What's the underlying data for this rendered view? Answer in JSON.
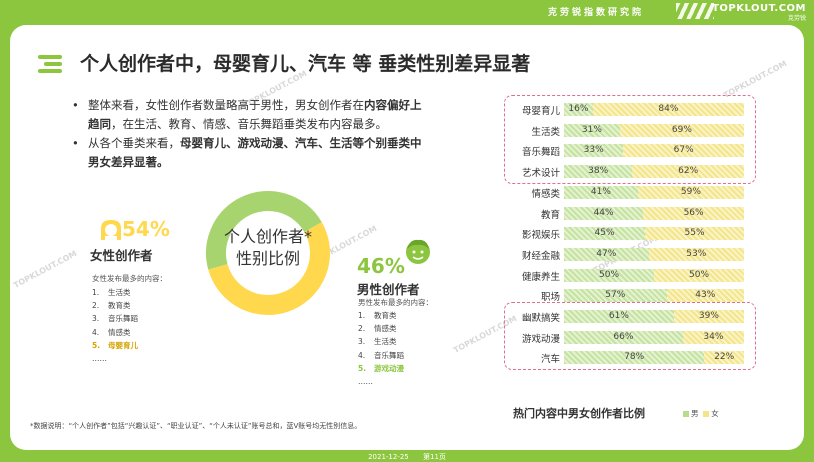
{
  "header": {
    "brand_cn": "克劳锐指数研究院",
    "logo_text": "TOPKLOUT.COM",
    "logo_sub": "克劳锐"
  },
  "title": "个人创作者中，母婴育儿、汽车 等 垂类性别差异显著",
  "bullets": {
    "b1_pre": "整体来看，女性创作者数量略高于男性，男女创作者在",
    "b1_bold": "内容偏好上趋同",
    "b1_post": "，在生活、教育、情感、音乐舞蹈垂类发布内容最多。",
    "b2_pre": "从各个垂类来看，",
    "b2_bold": "母婴育儿、游戏动漫、汽车、生活等个别垂类中男女差异显著。"
  },
  "donut": {
    "label_line1": "个人创作者*",
    "label_line2": "性别比例",
    "female_share": 54,
    "male_share": 46,
    "colors": {
      "female": "#ffd84e",
      "male": "#a8d46f"
    }
  },
  "female": {
    "pct": "54%",
    "title": "女性创作者",
    "subtitle": "女性发布最多的内容：",
    "items": [
      {
        "n": "1.",
        "label": "生活类"
      },
      {
        "n": "2.",
        "label": "教育类"
      },
      {
        "n": "3.",
        "label": "音乐舞蹈"
      },
      {
        "n": "4.",
        "label": "情感类"
      },
      {
        "n": "5.",
        "label": "母婴育儿"
      }
    ],
    "more": "……"
  },
  "male": {
    "pct": "46%",
    "title": "男性创作者",
    "subtitle": "男性发布最多的内容：",
    "items": [
      {
        "n": "1.",
        "label": "教育类"
      },
      {
        "n": "2.",
        "label": "情感类"
      },
      {
        "n": "3.",
        "label": "生活类"
      },
      {
        "n": "4.",
        "label": "音乐舞蹈"
      },
      {
        "n": "5.",
        "label": "游戏动漫"
      }
    ],
    "more": "……"
  },
  "chart_data": {
    "type": "bar",
    "title": "热门内容中男女创作者比例",
    "categories": [
      "母婴育儿",
      "生活类",
      "音乐舞蹈",
      "艺术设计",
      "情感类",
      "教育",
      "影视娱乐",
      "财经金融",
      "健康养生",
      "职场",
      "幽默搞笑",
      "游戏动漫",
      "汽车"
    ],
    "series": [
      {
        "name": "男",
        "values": [
          16,
          31,
          33,
          38,
          41,
          44,
          45,
          47,
          50,
          57,
          61,
          66,
          78
        ]
      },
      {
        "name": "女",
        "values": [
          84,
          69,
          67,
          62,
          59,
          56,
          55,
          53,
          50,
          43,
          39,
          34,
          22
        ]
      }
    ],
    "stacked": true,
    "ylim": [
      0,
      100
    ],
    "legend_position": "bottom-right",
    "highlight_groups": [
      [
        0,
        3
      ],
      [
        10,
        12
      ]
    ],
    "colors": {
      "男": "#b8dc8a",
      "女": "#f3e58a"
    }
  },
  "footnote": "*数据说明：“个人创作者”包括“兴趣认证”、“职业认证”、“个人未认证”账号总和，蓝V账号均无性别信息。",
  "footer": {
    "date": "2021-12-25",
    "page": "第11页"
  },
  "watermark": "TOPKLOUT.COM"
}
